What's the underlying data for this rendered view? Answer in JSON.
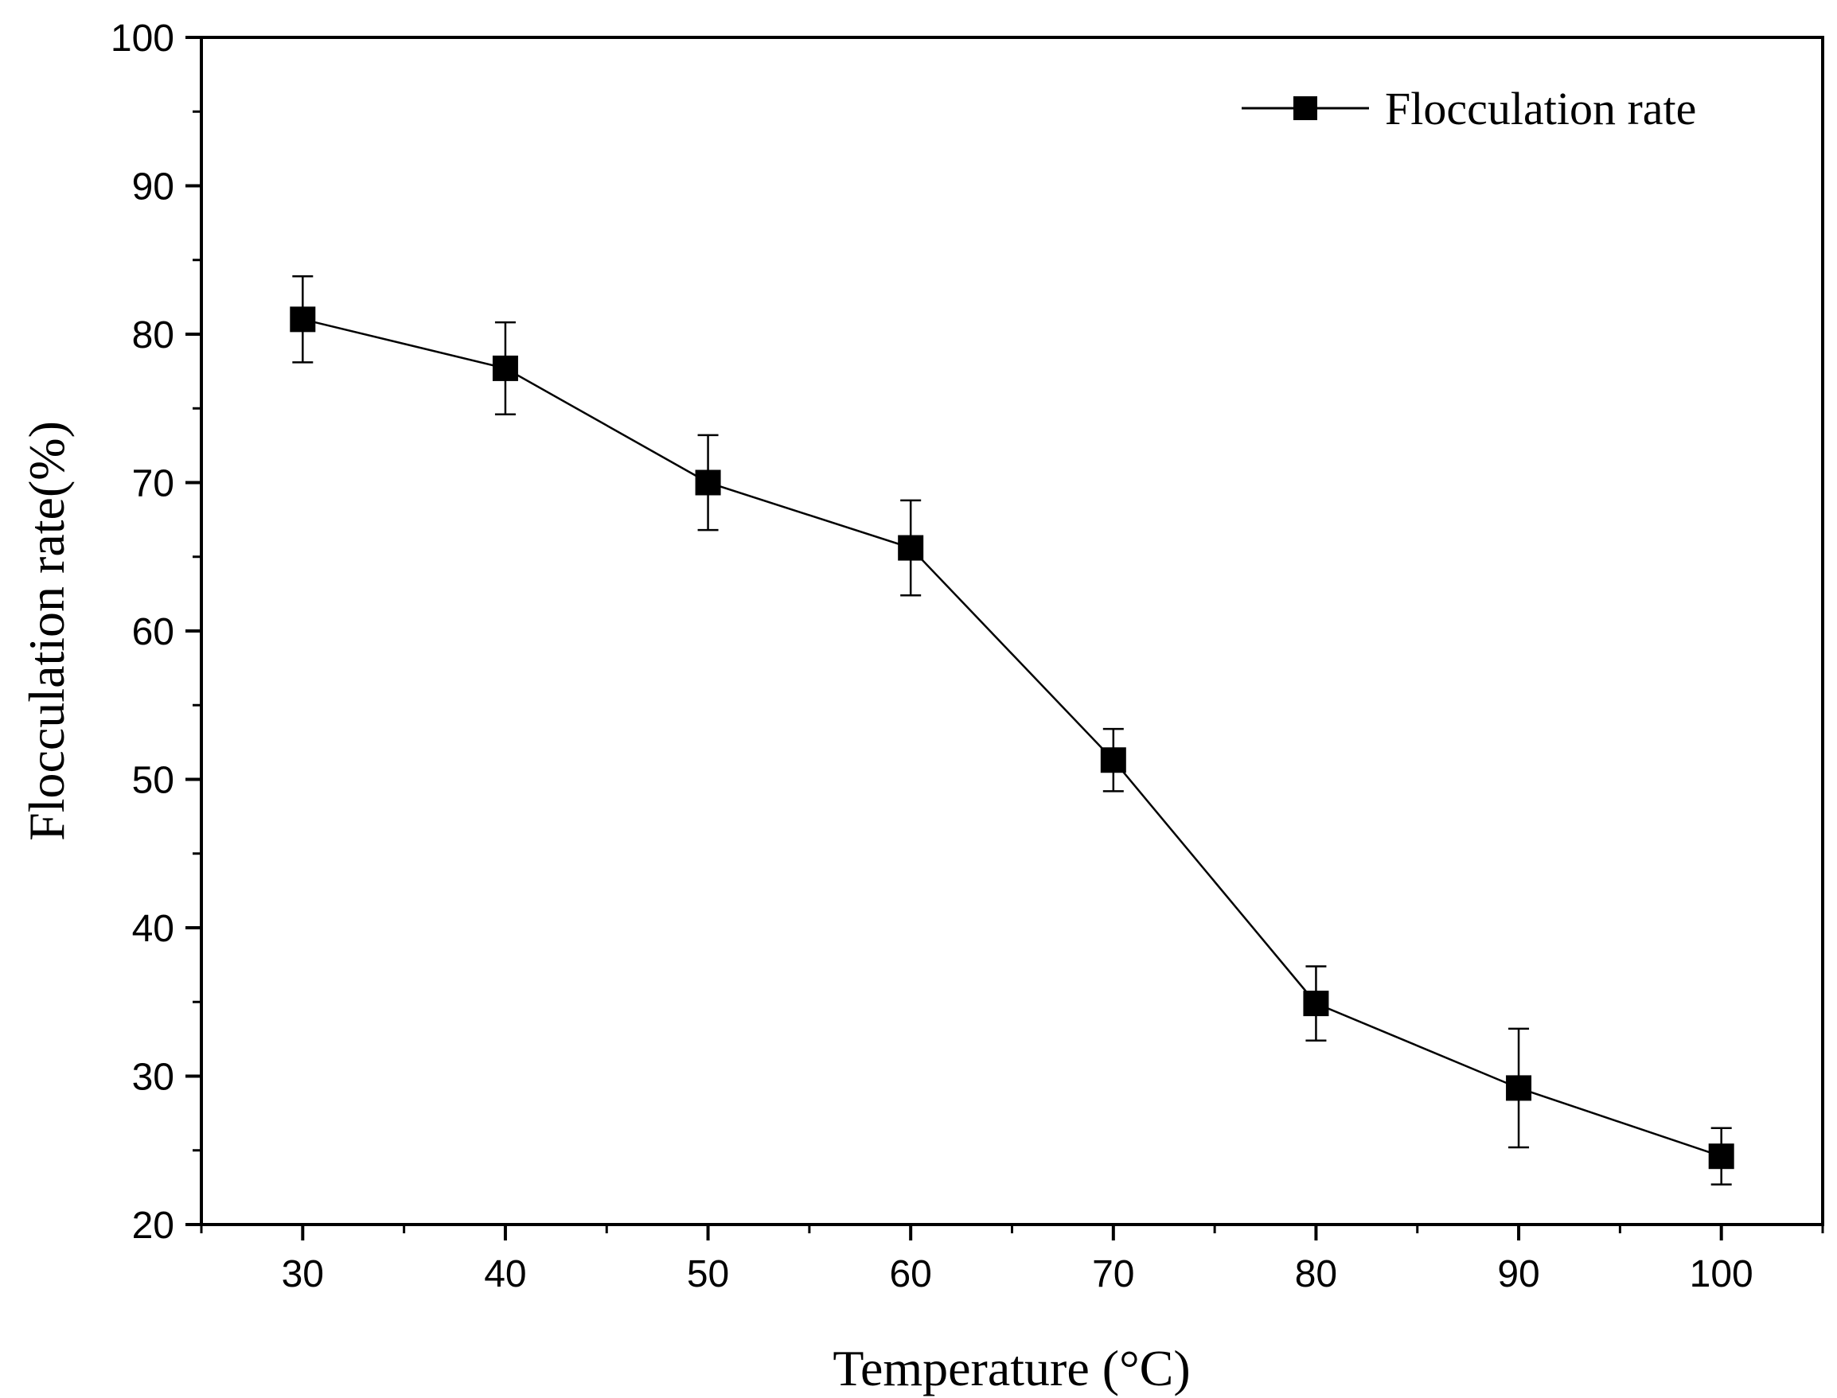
{
  "chart_data": {
    "type": "line",
    "title": "",
    "xlabel": "Temperature (°C)",
    "ylabel": "Flocculation rate(%)",
    "xlim": [
      25,
      105
    ],
    "ylim": [
      20,
      100
    ],
    "x_ticks": [
      30,
      40,
      50,
      60,
      70,
      80,
      90,
      100
    ],
    "x_tick_labels": [
      "30",
      "40",
      "50",
      "60",
      "70",
      "80",
      "90",
      "100"
    ],
    "y_ticks": [
      20,
      30,
      40,
      50,
      60,
      70,
      80,
      90,
      100
    ],
    "y_tick_labels": [
      "20",
      "30",
      "40",
      "50",
      "60",
      "70",
      "80",
      "90",
      "100"
    ],
    "grid": false,
    "legend_position": "top-right",
    "series": [
      {
        "name": "Flocculation rate",
        "marker": "square",
        "color": "#000000",
        "x": [
          30,
          40,
          50,
          60,
          70,
          80,
          90,
          100
        ],
        "y": [
          81.0,
          77.7,
          70.0,
          65.6,
          51.3,
          34.9,
          29.2,
          24.6
        ],
        "error": [
          2.9,
          3.1,
          3.2,
          3.2,
          2.1,
          2.5,
          4.0,
          1.9
        ]
      }
    ]
  }
}
